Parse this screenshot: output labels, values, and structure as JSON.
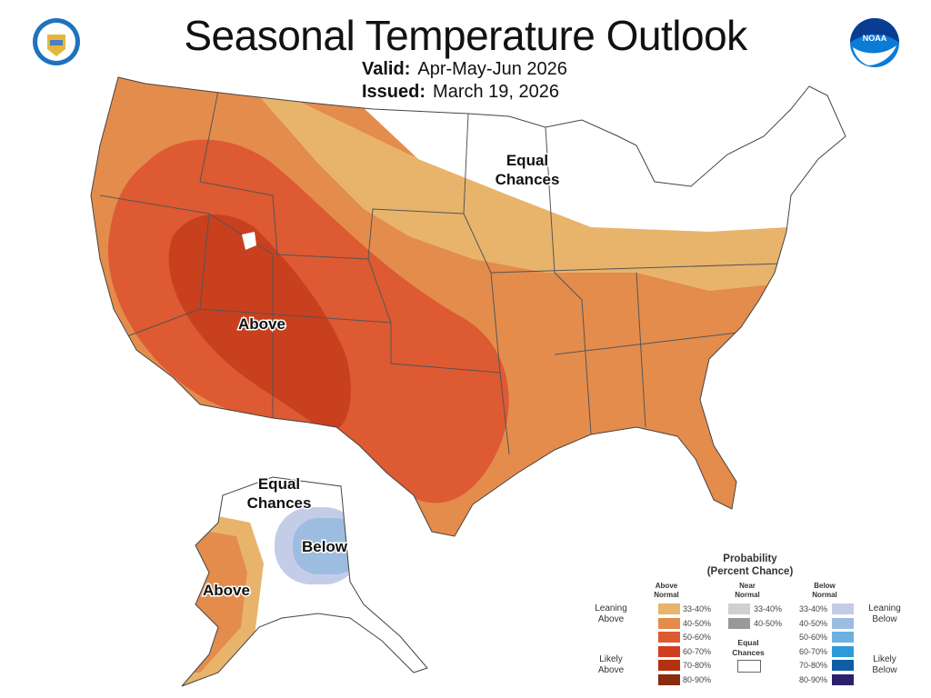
{
  "header": {
    "title": "Seasonal Temperature Outlook",
    "valid_label": "Valid:",
    "valid_value": "Apr-May-Jun 2026",
    "issued_label": "Issued:",
    "issued_value": "March 19, 2026",
    "left_logo": "US Department of Commerce seal",
    "right_logo": "NOAA"
  },
  "map": {
    "labels": {
      "conus_equal_chances": [
        "Equal",
        "Chances"
      ],
      "conus_above": "Above",
      "alaska_equal_chances": [
        "Equal",
        "Chances"
      ],
      "alaska_below": "Below",
      "alaska_above": "Above"
    }
  },
  "legend": {
    "title": [
      "Probability",
      "(Percent Chance)"
    ],
    "columns": {
      "above": [
        "Above",
        "Normal"
      ],
      "near": [
        "Near",
        "Normal"
      ],
      "below": [
        "Below",
        "Normal"
      ]
    },
    "groups": {
      "leaning_above": [
        "Leaning",
        "Above"
      ],
      "likely_above": [
        "Likely",
        "Above"
      ],
      "leaning_below": [
        "Leaning",
        "Below"
      ],
      "likely_below": [
        "Likely",
        "Below"
      ]
    },
    "above": [
      {
        "range": "33-40%",
        "color": "#e8b46c"
      },
      {
        "range": "40-50%",
        "color": "#e48c4c"
      },
      {
        "range": "50-60%",
        "color": "#dd5a33"
      },
      {
        "range": "60-70%",
        "color": "#cf3f1f"
      },
      {
        "range": "70-80%",
        "color": "#b5300e"
      },
      {
        "range": "80-90%",
        "color": "#8a2a0e"
      }
    ],
    "near": [
      {
        "range": "33-40%",
        "color": "#d0d0d0"
      },
      {
        "range": "40-50%",
        "color": "#999999"
      }
    ],
    "equal_chances": [
      "Equal",
      "Chances"
    ],
    "equal_color": "#ffffff",
    "below": [
      {
        "range": "33-40%",
        "color": "#c4cde8"
      },
      {
        "range": "40-50%",
        "color": "#9dbde0"
      },
      {
        "range": "50-60%",
        "color": "#6fb0e0"
      },
      {
        "range": "60-70%",
        "color": "#2e9bd9"
      },
      {
        "range": "70-80%",
        "color": "#0f5ea3"
      },
      {
        "range": "80-90%",
        "color": "#2d1f6b"
      }
    ]
  }
}
